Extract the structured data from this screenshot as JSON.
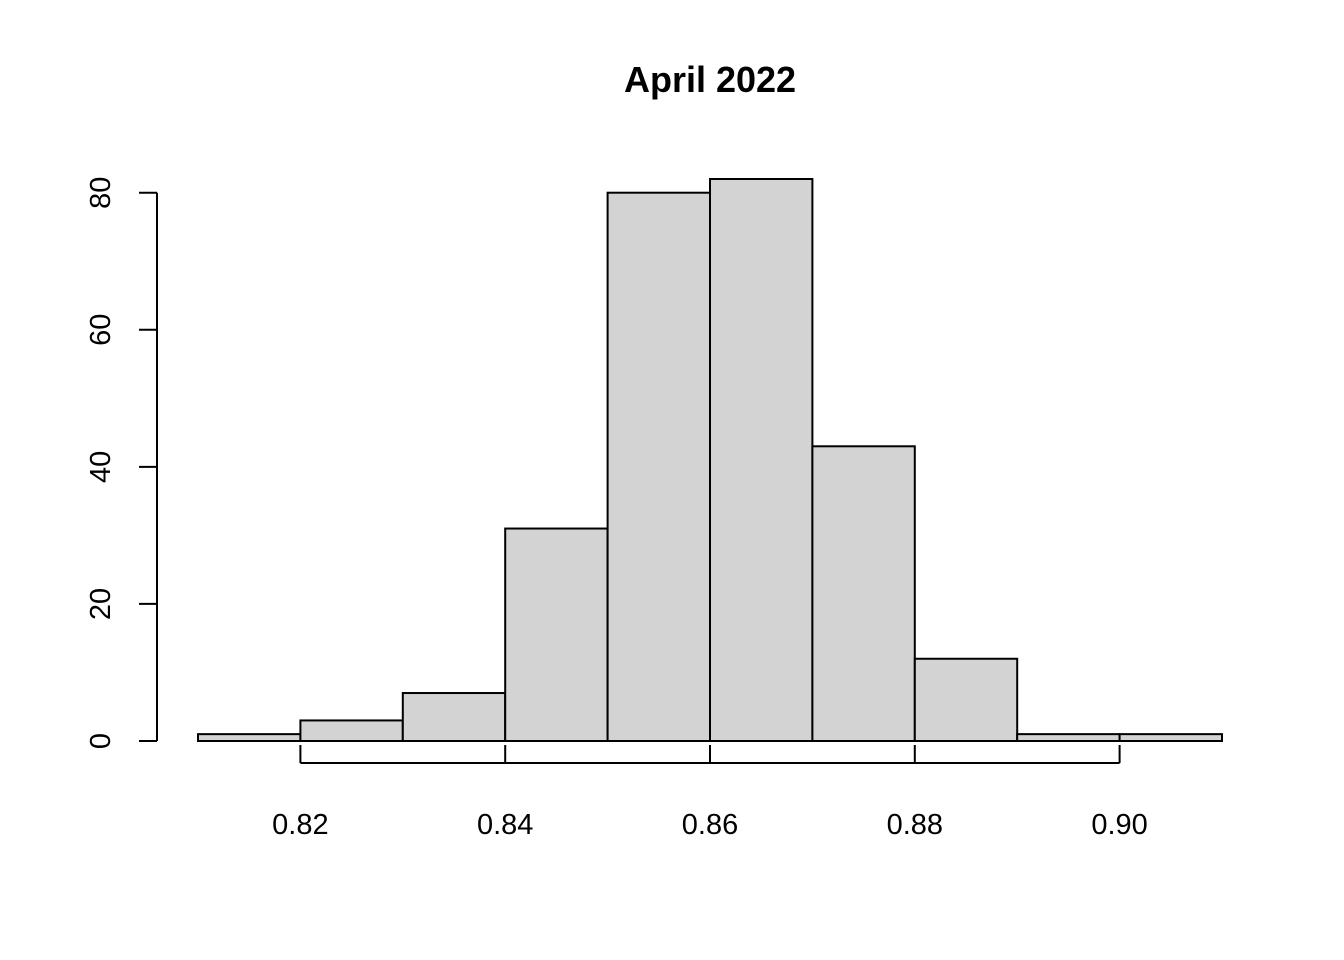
{
  "chart_data": {
    "type": "bar",
    "subtype": "histogram",
    "title": "April 2022",
    "xlabel": "",
    "ylabel": "",
    "bins": [
      {
        "start": 0.81,
        "end": 0.82,
        "count": 1
      },
      {
        "start": 0.82,
        "end": 0.83,
        "count": 3
      },
      {
        "start": 0.83,
        "end": 0.84,
        "count": 7
      },
      {
        "start": 0.84,
        "end": 0.85,
        "count": 31
      },
      {
        "start": 0.85,
        "end": 0.86,
        "count": 80
      },
      {
        "start": 0.86,
        "end": 0.87,
        "count": 82
      },
      {
        "start": 0.87,
        "end": 0.88,
        "count": 43
      },
      {
        "start": 0.88,
        "end": 0.89,
        "count": 12
      },
      {
        "start": 0.89,
        "end": 0.9,
        "count": 1
      },
      {
        "start": 0.9,
        "end": 0.91,
        "count": 1
      }
    ],
    "xlim": [
      0.81,
      0.91
    ],
    "ylim": [
      0,
      82
    ],
    "xticks": [
      {
        "value": 0.82,
        "label": "0.82"
      },
      {
        "value": 0.84,
        "label": "0.84"
      },
      {
        "value": 0.86,
        "label": "0.86"
      },
      {
        "value": 0.88,
        "label": "0.88"
      },
      {
        "value": 0.9,
        "label": "0.90"
      }
    ],
    "yticks": [
      {
        "value": 0,
        "label": "0"
      },
      {
        "value": 20,
        "label": "20"
      },
      {
        "value": 40,
        "label": "40"
      },
      {
        "value": 60,
        "label": "60"
      },
      {
        "value": 80,
        "label": "80"
      }
    ],
    "bar_color": "#d3d3d3",
    "edge_color": "#000000",
    "grid": false,
    "legend": "none"
  }
}
